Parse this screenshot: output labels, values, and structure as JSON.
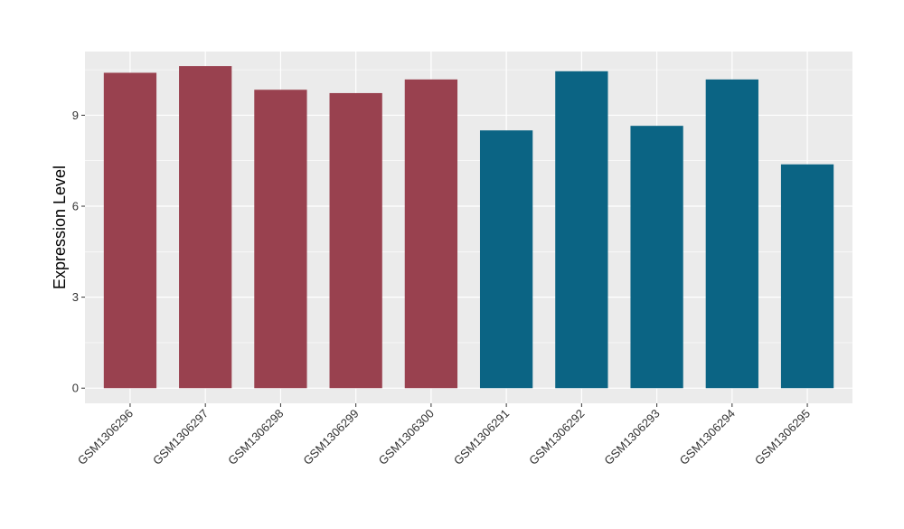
{
  "chart_data": {
    "type": "bar",
    "title": "",
    "xlabel": "",
    "ylabel": "Expression Level",
    "categories": [
      "GSM1306296",
      "GSM1306297",
      "GSM1306298",
      "GSM1306299",
      "GSM1306300",
      "GSM1306291",
      "GSM1306292",
      "GSM1306293",
      "GSM1306294",
      "GSM1306295"
    ],
    "values": [
      10.4,
      10.62,
      9.84,
      9.73,
      10.18,
      8.5,
      10.45,
      8.65,
      10.18,
      7.38
    ],
    "group_colors": [
      "#99414F",
      "#99414F",
      "#99414F",
      "#99414F",
      "#99414F",
      "#0B6484",
      "#0B6484",
      "#0B6484",
      "#0B6484",
      "#0B6484"
    ],
    "ylim": [
      -0.5,
      11.1
    ],
    "yticks": [
      0,
      3,
      6,
      9
    ],
    "ytick_labels": [
      "0",
      "3",
      "6",
      "9"
    ],
    "grid": true,
    "panel_background": "#EBEBEB",
    "legend": "none"
  }
}
